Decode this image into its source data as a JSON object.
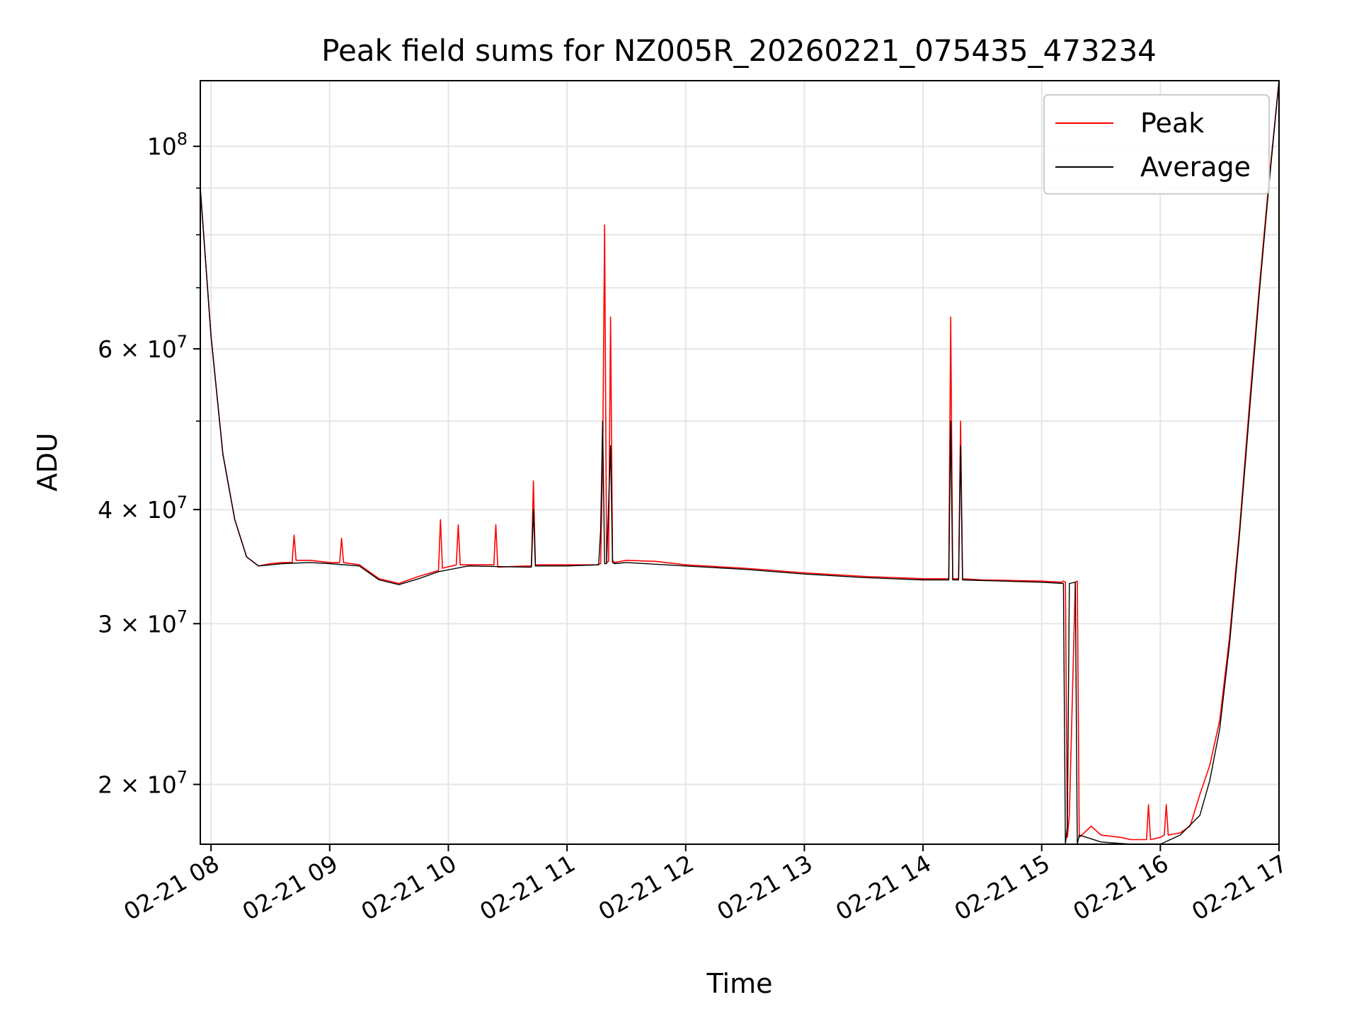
{
  "chart_data": {
    "type": "line",
    "title": "Peak field sums for NZ005R_20260221_075435_473234",
    "xlabel": "Time",
    "ylabel": "ADU",
    "xlim": [
      "2026-02-21 07:54:35",
      "2026-02-21 17:00"
    ],
    "ylim": [
      17200000,
      118000000
    ],
    "yscale": "log",
    "grid": true,
    "legend_position": "top-right",
    "x_ticks": [
      {
        "time": "2026-02-21 08:00",
        "label": "02-21 08"
      },
      {
        "time": "2026-02-21 09:00",
        "label": "02-21 09"
      },
      {
        "time": "2026-02-21 10:00",
        "label": "02-21 10"
      },
      {
        "time": "2026-02-21 11:00",
        "label": "02-21 11"
      },
      {
        "time": "2026-02-21 12:00",
        "label": "02-21 12"
      },
      {
        "time": "2026-02-21 13:00",
        "label": "02-21 13"
      },
      {
        "time": "2026-02-21 14:00",
        "label": "02-21 14"
      },
      {
        "time": "2026-02-21 15:00",
        "label": "02-21 15"
      },
      {
        "time": "2026-02-21 16:00",
        "label": "02-21 16"
      },
      {
        "time": "2026-02-21 17:00",
        "label": "02-21 17"
      }
    ],
    "y_ticks": [
      {
        "value": 20000000,
        "mantissa": "2",
        "exp": "7"
      },
      {
        "value": 30000000,
        "mantissa": "3",
        "exp": "7"
      },
      {
        "value": 40000000,
        "mantissa": "4",
        "exp": "7"
      },
      {
        "value": 60000000,
        "mantissa": "6",
        "exp": "7"
      },
      {
        "value": 100000000,
        "mantissa": "",
        "exp": "8"
      }
    ],
    "y_minor_ticks": [
      50000000,
      70000000,
      80000000,
      90000000
    ],
    "series": [
      {
        "name": "Peak",
        "color": "#ff0000",
        "x": [
          "2026-02-21 07:54:35",
          "2026-02-21 08:00",
          "2026-02-21 08:06",
          "2026-02-21 08:12",
          "2026-02-21 08:18",
          "2026-02-21 08:24",
          "2026-02-21 08:30",
          "2026-02-21 08:36",
          "2026-02-21 08:41",
          "2026-02-21 08:42",
          "2026-02-21 08:43",
          "2026-02-21 08:50",
          "2026-02-21 09:00",
          "2026-02-21 09:05",
          "2026-02-21 09:06",
          "2026-02-21 09:07",
          "2026-02-21 09:15",
          "2026-02-21 09:25",
          "2026-02-21 09:35",
          "2026-02-21 09:45",
          "2026-02-21 09:55",
          "2026-02-21 09:56",
          "2026-02-21 09:57",
          "2026-02-21 10:04",
          "2026-02-21 10:05",
          "2026-02-21 10:06",
          "2026-02-21 10:10",
          "2026-02-21 10:23",
          "2026-02-21 10:24",
          "2026-02-21 10:25",
          "2026-02-21 10:40",
          "2026-02-21 10:42",
          "2026-02-21 10:43",
          "2026-02-21 10:44",
          "2026-02-21 11:00",
          "2026-02-21 11:15",
          "2026-02-21 11:17",
          "2026-02-21 11:18",
          "2026-02-21 11:19",
          "2026-02-21 11:20",
          "2026-02-21 11:21",
          "2026-02-21 11:22",
          "2026-02-21 11:23",
          "2026-02-21 11:24",
          "2026-02-21 11:30",
          "2026-02-21 11:45",
          "2026-02-21 12:00",
          "2026-02-21 12:30",
          "2026-02-21 13:00",
          "2026-02-21 13:30",
          "2026-02-21 14:00",
          "2026-02-21 14:10",
          "2026-02-21 14:13",
          "2026-02-21 14:14",
          "2026-02-21 14:15",
          "2026-02-21 14:18",
          "2026-02-21 14:19",
          "2026-02-21 14:20",
          "2026-02-21 14:30",
          "2026-02-21 15:00",
          "2026-02-21 15:10",
          "2026-02-21 15:11",
          "2026-02-21 15:12",
          "2026-02-21 15:13",
          "2026-02-21 15:14",
          "2026-02-21 15:17",
          "2026-02-21 15:18",
          "2026-02-21 15:19",
          "2026-02-21 15:25",
          "2026-02-21 15:30",
          "2026-02-21 15:40",
          "2026-02-21 15:45",
          "2026-02-21 15:53",
          "2026-02-21 15:54",
          "2026-02-21 15:55",
          "2026-02-21 16:00",
          "2026-02-21 16:02",
          "2026-02-21 16:03",
          "2026-02-21 16:04",
          "2026-02-21 16:10",
          "2026-02-21 16:15",
          "2026-02-21 16:20",
          "2026-02-21 16:25",
          "2026-02-21 16:30",
          "2026-02-21 16:35",
          "2026-02-21 16:40",
          "2026-02-21 16:45",
          "2026-02-21 16:50",
          "2026-02-21 16:55",
          "2026-02-21 17:00"
        ],
        "y": [
          90000000,
          62000000,
          46000000,
          39000000,
          35500000,
          34700000,
          34900000,
          35000000,
          35000000,
          37500000,
          35200000,
          35200000,
          35000000,
          35000000,
          37200000,
          35000000,
          34800000,
          33600000,
          33200000,
          33800000,
          34300000,
          39000000,
          34500000,
          34800000,
          38500000,
          34800000,
          34800000,
          34800000,
          38500000,
          34600000,
          34700000,
          34700000,
          43000000,
          34800000,
          34800000,
          34800000,
          34900000,
          45000000,
          82000000,
          35000000,
          35100000,
          65000000,
          35200000,
          35000000,
          35200000,
          35100000,
          34800000,
          34500000,
          34100000,
          33800000,
          33600000,
          33600000,
          33600000,
          65000000,
          33600000,
          33600000,
          50000000,
          33600000,
          33500000,
          33400000,
          33300000,
          33400000,
          33300000,
          17500000,
          18500000,
          33300000,
          33400000,
          17500000,
          18000000,
          17600000,
          17500000,
          17400000,
          17400000,
          19000000,
          17400000,
          17500000,
          17600000,
          19000000,
          17600000,
          17700000,
          18000000,
          19500000,
          21000000,
          23500000,
          29000000,
          38000000,
          52000000,
          70000000,
          92000000,
          118000000
        ]
      },
      {
        "name": "Average",
        "color": "#000000",
        "x": [
          "2026-02-21 07:54:35",
          "2026-02-21 08:00",
          "2026-02-21 08:06",
          "2026-02-21 08:12",
          "2026-02-21 08:18",
          "2026-02-21 08:24",
          "2026-02-21 08:30",
          "2026-02-21 08:36",
          "2026-02-21 08:50",
          "2026-02-21 09:00",
          "2026-02-21 09:15",
          "2026-02-21 09:25",
          "2026-02-21 09:35",
          "2026-02-21 09:45",
          "2026-02-21 09:55",
          "2026-02-21 10:10",
          "2026-02-21 10:40",
          "2026-02-21 10:42",
          "2026-02-21 10:43",
          "2026-02-21 10:44",
          "2026-02-21 11:00",
          "2026-02-21 11:16",
          "2026-02-21 11:17",
          "2026-02-21 11:18",
          "2026-02-21 11:19",
          "2026-02-21 11:20",
          "2026-02-21 11:22",
          "2026-02-21 11:23",
          "2026-02-21 11:24",
          "2026-02-21 11:30",
          "2026-02-21 12:00",
          "2026-02-21 12:30",
          "2026-02-21 13:00",
          "2026-02-21 13:30",
          "2026-02-21 14:00",
          "2026-02-21 14:13",
          "2026-02-21 14:14",
          "2026-02-21 14:15",
          "2026-02-21 14:18",
          "2026-02-21 14:19",
          "2026-02-21 14:20",
          "2026-02-21 15:00",
          "2026-02-21 15:11",
          "2026-02-21 15:12",
          "2026-02-21 15:13",
          "2026-02-21 15:14",
          "2026-02-21 15:17",
          "2026-02-21 15:18",
          "2026-02-21 15:19",
          "2026-02-21 15:30",
          "2026-02-21 15:45",
          "2026-02-21 16:00",
          "2026-02-21 16:10",
          "2026-02-21 16:20",
          "2026-02-21 16:25",
          "2026-02-21 16:30",
          "2026-02-21 16:35",
          "2026-02-21 16:40",
          "2026-02-21 16:45",
          "2026-02-21 16:50",
          "2026-02-21 16:55",
          "2026-02-21 17:00"
        ],
        "y": [
          90000000,
          62000000,
          46000000,
          39000000,
          35500000,
          34700000,
          34800000,
          34900000,
          35000000,
          34900000,
          34700000,
          33500000,
          33100000,
          33600000,
          34200000,
          34700000,
          34600000,
          34600000,
          40000000,
          34700000,
          34700000,
          34800000,
          38000000,
          50000000,
          34900000,
          34900000,
          47000000,
          35000000,
          34900000,
          35000000,
          34700000,
          34400000,
          34000000,
          33700000,
          33500000,
          33500000,
          50000000,
          33500000,
          33500000,
          47000000,
          33500000,
          33300000,
          33200000,
          17200000,
          18000000,
          33200000,
          33300000,
          17200000,
          17600000,
          17300000,
          17200000,
          17200000,
          17600000,
          18500000,
          20200000,
          23000000,
          28500000,
          37500000,
          51000000,
          69000000,
          91000000,
          118000000
        ]
      }
    ]
  }
}
